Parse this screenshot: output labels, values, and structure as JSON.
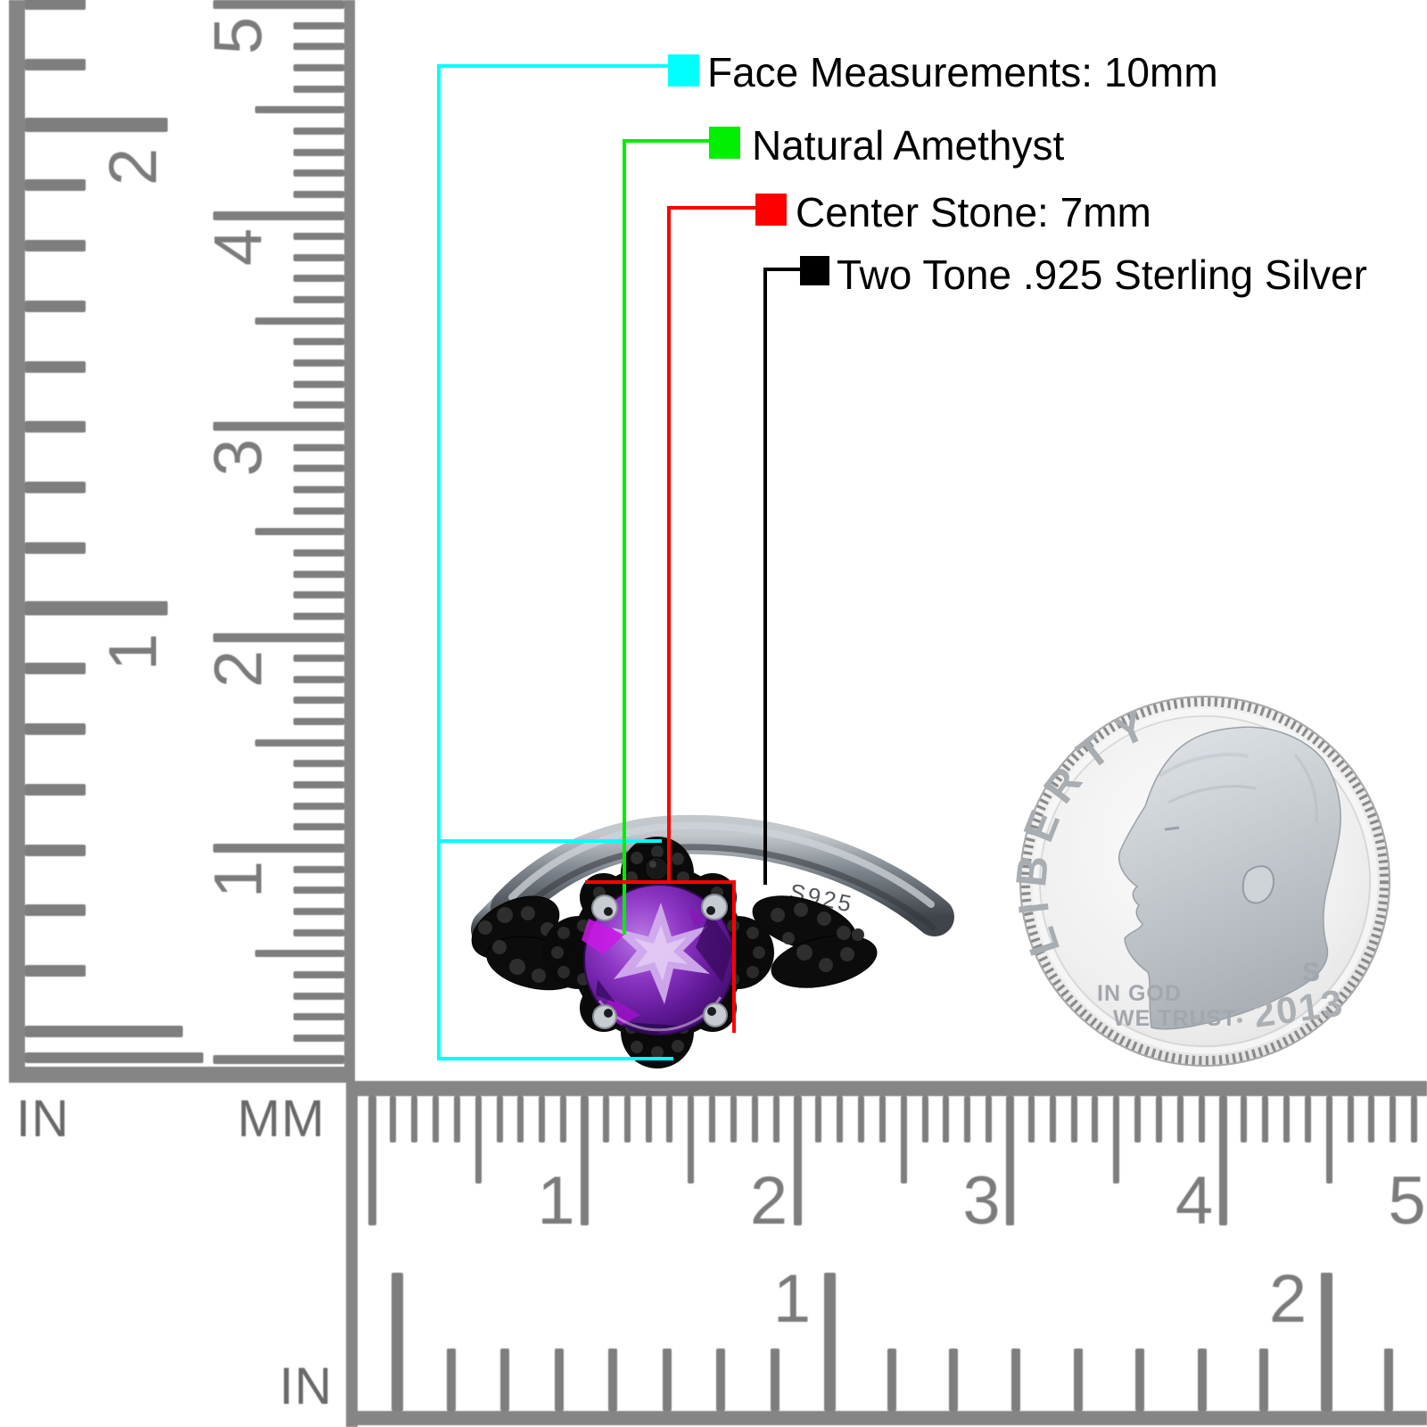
{
  "annotations": {
    "items": [
      {
        "label": "Face Measurements: 10mm",
        "color": "#00ffff"
      },
      {
        "label": "Natural Amethyst",
        "color": "#00ee00"
      },
      {
        "label": "Center Stone: 7mm",
        "color": "#ff0000"
      },
      {
        "label": "Two Tone .925 Sterling Silver",
        "color": "#000000"
      }
    ]
  },
  "ring": {
    "engraving": "S925",
    "stone_color": "#7b24ad",
    "metal_color": "#4a4f56"
  },
  "coin": {
    "legend": "LIBERTY",
    "motto_line1": "IN GOD",
    "motto_line2": "WE TRUST",
    "mint_mark": "S",
    "year": "2013"
  },
  "rulers": {
    "left": {
      "in_label": "IN",
      "mm_label": "MM",
      "in_numbers": [
        "1",
        "2"
      ],
      "mm_numbers": [
        "1",
        "2",
        "3",
        "4",
        "5"
      ]
    },
    "bottom": {
      "in_label": "IN",
      "mm_numbers": [
        "1",
        "2",
        "3",
        "4",
        "5"
      ],
      "in_numbers": [
        "1",
        "2"
      ]
    }
  }
}
